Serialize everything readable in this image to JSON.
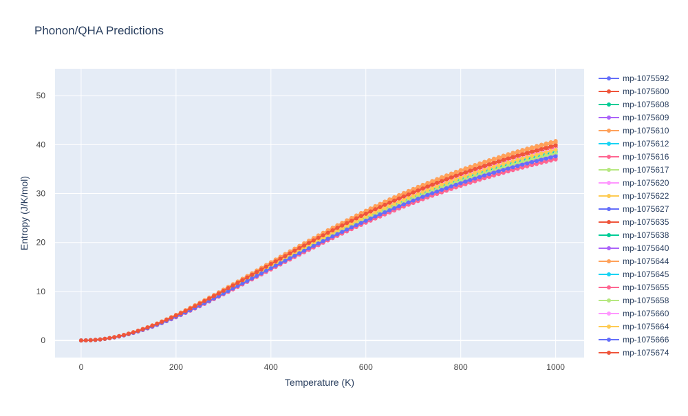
{
  "colors": {
    "plot_bg": "#E5ECF6",
    "grid": "#ffffff",
    "text": "#2a3f5f",
    "tick_text": "#444444"
  },
  "chart_data": {
    "type": "line",
    "mode": "lines+markers",
    "title": "Phonon/QHA Predictions",
    "xlabel": "Temperature (K)",
    "ylabel": "Entropy (J/K/mol)",
    "xlim": [
      -55,
      1060
    ],
    "ylim": [
      -3.5,
      55.5
    ],
    "xticks": [
      0,
      200,
      400,
      600,
      800,
      1000
    ],
    "yticks": [
      0,
      10,
      20,
      30,
      40,
      50
    ],
    "x": [
      0,
      10,
      20,
      30,
      40,
      50,
      60,
      70,
      80,
      90,
      100,
      110,
      120,
      130,
      140,
      150,
      160,
      170,
      180,
      190,
      200,
      210,
      220,
      230,
      240,
      250,
      260,
      270,
      280,
      290,
      300,
      310,
      320,
      330,
      340,
      350,
      360,
      370,
      380,
      390,
      400,
      410,
      420,
      430,
      440,
      450,
      460,
      470,
      480,
      490,
      500,
      510,
      520,
      530,
      540,
      550,
      560,
      570,
      580,
      590,
      600,
      610,
      620,
      630,
      640,
      650,
      660,
      670,
      680,
      690,
      700,
      710,
      720,
      730,
      740,
      750,
      760,
      770,
      780,
      790,
      800,
      810,
      820,
      830,
      840,
      850,
      860,
      870,
      880,
      890,
      900,
      910,
      920,
      930,
      940,
      950,
      960,
      970,
      980,
      990,
      1000
    ],
    "curve_model": "S(T) = S1000 * (1 - exp(-(T/T0)^p))^q",
    "legend_position": "right",
    "series": [
      {
        "name": "mp-1075592",
        "color": "#636efa",
        "S1000": 48.4,
        "T0": 470,
        "p": 1.05,
        "q": 2.1
      },
      {
        "name": "mp-1075600",
        "color": "#EF553B",
        "S1000": 51.0,
        "T0": 470,
        "p": 1.05,
        "q": 2.1
      },
      {
        "name": "mp-1075608",
        "color": "#00cc96",
        "S1000": 49.2,
        "T0": 470,
        "p": 1.05,
        "q": 2.1
      },
      {
        "name": "mp-1075609",
        "color": "#ab63fa",
        "S1000": 48.9,
        "T0": 470,
        "p": 1.05,
        "q": 2.1
      },
      {
        "name": "mp-1075610",
        "color": "#FFA15A",
        "S1000": 51.6,
        "T0": 470,
        "p": 1.05,
        "q": 2.1
      },
      {
        "name": "mp-1075612",
        "color": "#19d3f3",
        "S1000": 49.8,
        "T0": 470,
        "p": 1.05,
        "q": 2.1
      },
      {
        "name": "mp-1075616",
        "color": "#FF6692",
        "S1000": 47.5,
        "T0": 470,
        "p": 1.05,
        "q": 2.1
      },
      {
        "name": "mp-1075617",
        "color": "#B6E880",
        "S1000": 48.6,
        "T0": 470,
        "p": 1.05,
        "q": 2.1
      },
      {
        "name": "mp-1075620",
        "color": "#FF97FF",
        "S1000": 50.6,
        "T0": 470,
        "p": 1.05,
        "q": 2.1
      },
      {
        "name": "mp-1075622",
        "color": "#FECB52",
        "S1000": 49.6,
        "T0": 470,
        "p": 1.05,
        "q": 2.1
      },
      {
        "name": "mp-1075627",
        "color": "#636efa",
        "S1000": 48.1,
        "T0": 470,
        "p": 1.05,
        "q": 2.1
      },
      {
        "name": "mp-1075635",
        "color": "#EF553B",
        "S1000": 50.3,
        "T0": 470,
        "p": 1.05,
        "q": 2.1
      },
      {
        "name": "mp-1075638",
        "color": "#00cc96",
        "S1000": 49.0,
        "T0": 470,
        "p": 1.05,
        "q": 2.1
      },
      {
        "name": "mp-1075640",
        "color": "#ab63fa",
        "S1000": 48.3,
        "T0": 470,
        "p": 1.05,
        "q": 2.1
      },
      {
        "name": "mp-1075644",
        "color": "#FFA15A",
        "S1000": 52.0,
        "T0": 470,
        "p": 1.05,
        "q": 2.1
      },
      {
        "name": "mp-1075645",
        "color": "#19d3f3",
        "S1000": 49.4,
        "T0": 470,
        "p": 1.05,
        "q": 2.1
      },
      {
        "name": "mp-1075655",
        "color": "#FF6692",
        "S1000": 47.2,
        "T0": 470,
        "p": 1.05,
        "q": 2.1
      },
      {
        "name": "mp-1075658",
        "color": "#B6E880",
        "S1000": 48.8,
        "T0": 470,
        "p": 1.05,
        "q": 2.1
      },
      {
        "name": "mp-1075660",
        "color": "#FF97FF",
        "S1000": 50.0,
        "T0": 470,
        "p": 1.05,
        "q": 2.1
      },
      {
        "name": "mp-1075664",
        "color": "#FECB52",
        "S1000": 49.7,
        "T0": 470,
        "p": 1.05,
        "q": 2.1
      },
      {
        "name": "mp-1075666",
        "color": "#636efa",
        "S1000": 48.0,
        "T0": 470,
        "p": 1.05,
        "q": 2.1
      },
      {
        "name": "mp-1075674",
        "color": "#EF553B",
        "S1000": 50.8,
        "T0": 470,
        "p": 1.05,
        "q": 2.1
      }
    ]
  }
}
